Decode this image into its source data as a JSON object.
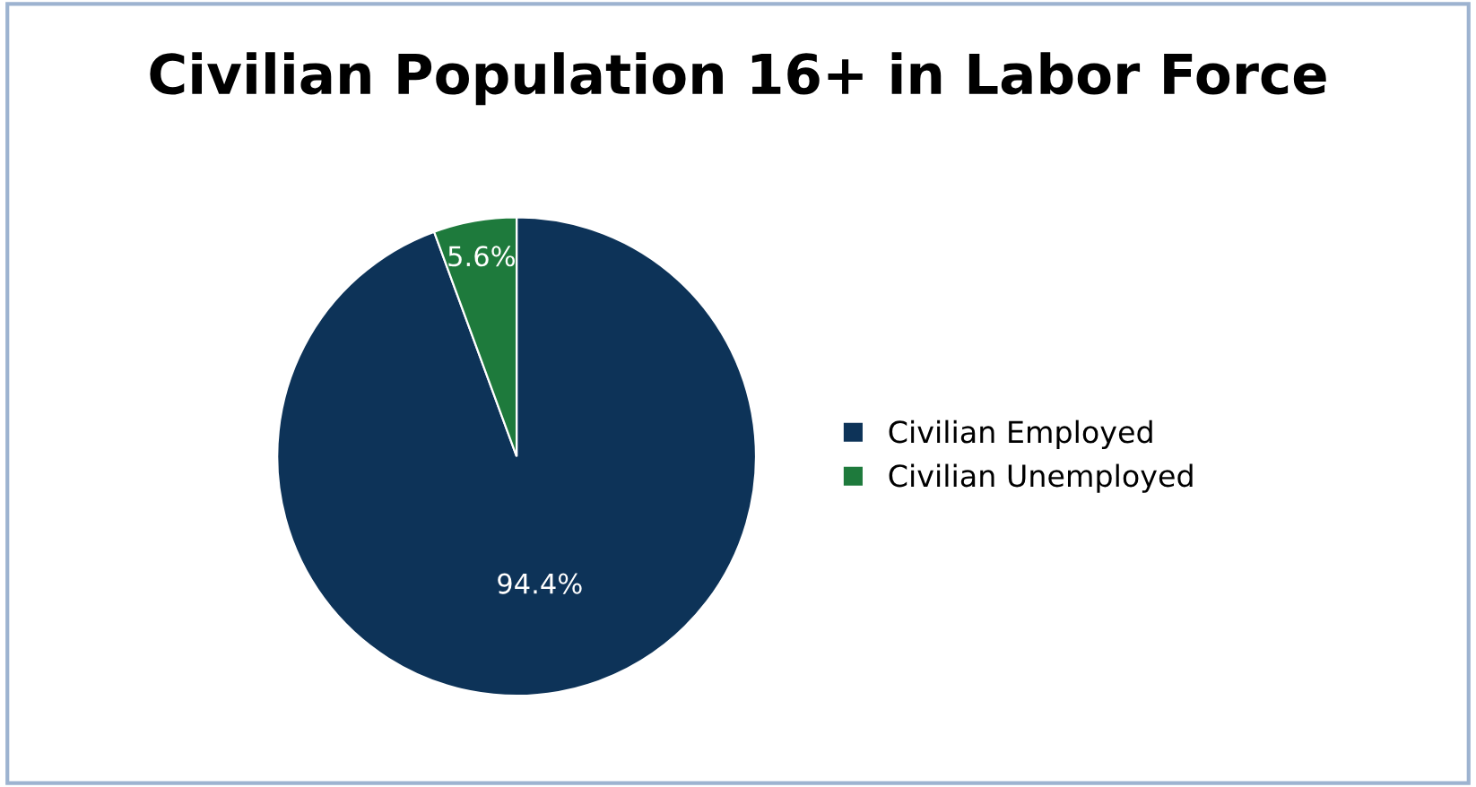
{
  "chart_data": {
    "type": "pie",
    "title": "Civilian Population 16+ in Labor Force",
    "categories": [
      "Civilian Employed",
      "Civilian Unemployed"
    ],
    "values": [
      94.4,
      5.6
    ],
    "colors": [
      "#0d3358",
      "#1e7a3c"
    ],
    "value_labels": [
      "94.4%",
      "5.6%"
    ],
    "legend": "right"
  }
}
